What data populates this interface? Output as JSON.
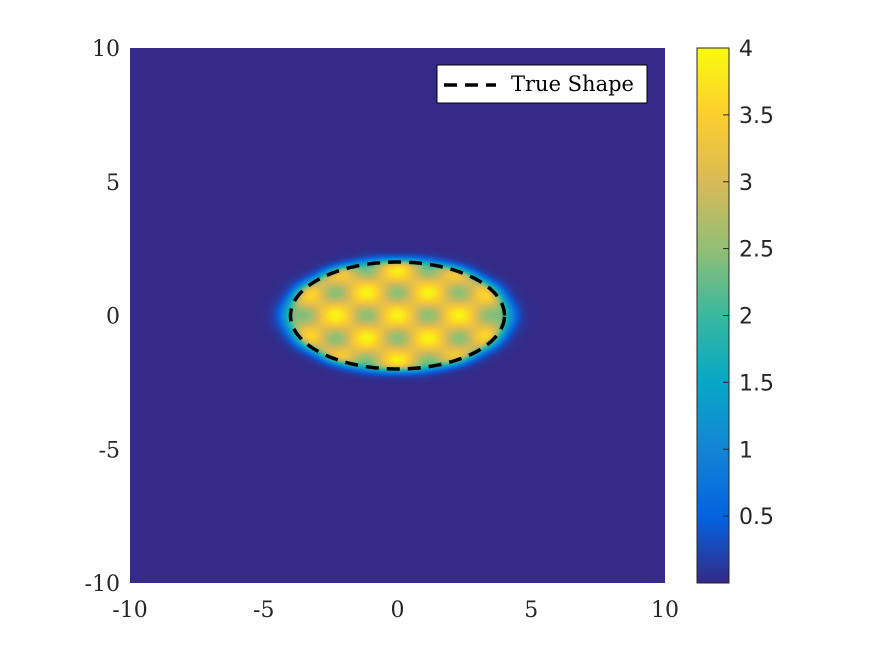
{
  "chart_data": {
    "type": "heatmap",
    "title": "",
    "xlabel": "",
    "ylabel": "",
    "xlim": [
      -10,
      10
    ],
    "ylim": [
      -10,
      10
    ],
    "x_ticks": [
      "-10",
      "-5",
      "0",
      "5",
      "10"
    ],
    "y_ticks": [
      "10",
      "5",
      "0",
      "-5",
      "-10"
    ],
    "colormap": "parula",
    "colorbar": {
      "range": [
        0,
        4
      ],
      "ticks": [
        "4",
        "3.5",
        "3",
        "2.5",
        "2",
        "1.5",
        "1",
        "0.5"
      ]
    },
    "field": {
      "description_values": "background ≈ 0; inside ellipse ≈ 2–4 with oscillating pattern",
      "ellipse_center": [
        0,
        0
      ],
      "ellipse_semi_axes": [
        4,
        2
      ],
      "background_value": 0,
      "interior_mean": 3.2,
      "interior_amplitude": 0.9
    },
    "overlay": {
      "name": "True Shape",
      "shape": "ellipse",
      "center": [
        0,
        0
      ],
      "semi_axes": [
        4,
        2
      ],
      "style": "dashed",
      "color": "#000000"
    },
    "legend": {
      "position": "top-right",
      "entries": [
        "True Shape"
      ]
    }
  }
}
